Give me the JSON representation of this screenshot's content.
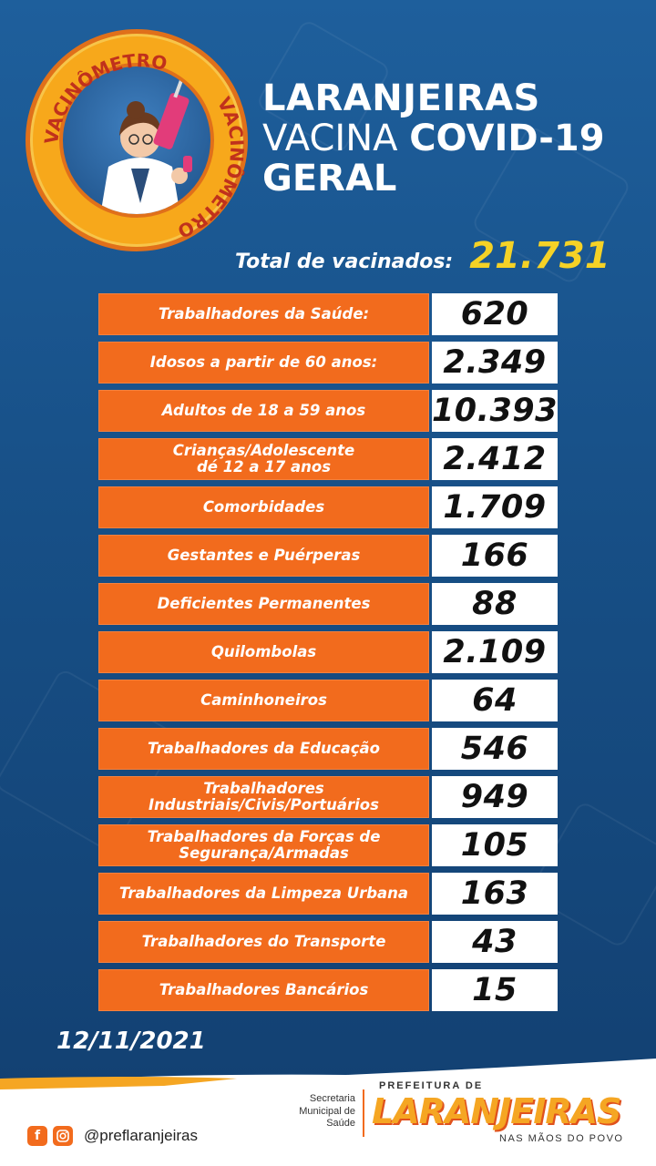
{
  "badge": {
    "text_top": "VACINÔMETRO",
    "text_right": "VACINÔMETRO"
  },
  "title": {
    "line1": "LARANJEIRAS",
    "line2_light": "VACINA",
    "line2_bold": "COVID-19",
    "line3": "GERAL"
  },
  "total": {
    "label": "Total de vacinados:",
    "value": "21.731"
  },
  "rows": [
    {
      "label": "Trabalhadores da Saúde:",
      "value": "620"
    },
    {
      "label": "Idosos a partir de 60 anos:",
      "value": "2.349"
    },
    {
      "label": "Adultos de 18 a 59 anos",
      "value": "10.393"
    },
    {
      "label": "Crianças/Adolescente\ndé 12 a 17 anos",
      "value": "2.412"
    },
    {
      "label": "Comorbidades",
      "value": "1.709"
    },
    {
      "label": "Gestantes e Puérperas",
      "value": "166"
    },
    {
      "label": "Deficientes Permanentes",
      "value": "88"
    },
    {
      "label": "Quilombolas",
      "value": "2.109"
    },
    {
      "label": "Caminhoneiros",
      "value": "64"
    },
    {
      "label": "Trabalhadores da Educação",
      "value": "546"
    },
    {
      "label": "Trabalhadores\nIndustriais/Civis/Portuários",
      "value": "949"
    },
    {
      "label": "Trabalhadores da Forças de\nSegurança/Armadas",
      "value": "105"
    },
    {
      "label": "Trabalhadores da Limpeza Urbana",
      "value": "163"
    },
    {
      "label": "Trabalhadores do Transporte",
      "value": "43"
    },
    {
      "label": "Trabalhadores Bancários",
      "value": "15"
    }
  ],
  "date": "12/11/2021",
  "footer": {
    "handle": "@preflaranjeiras",
    "secretaria": "Secretaria\nMunicipal de\nSaúde",
    "prefeitura_top": "PREFEITURA DE",
    "logo": "LARANJEIRAS",
    "slogan": "NAS MÃOS DO POVO",
    "icons": [
      "facebook-icon",
      "instagram-icon"
    ]
  },
  "colors": {
    "orange": "#f26b1d",
    "yellow": "#f5d226",
    "blue": "#1e5f9c"
  }
}
